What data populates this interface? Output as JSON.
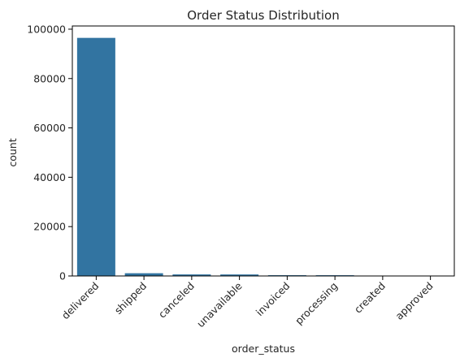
{
  "chart_data": {
    "type": "bar",
    "title": "Order Status Distribution",
    "xlabel": "order_status",
    "ylabel": "count",
    "categories": [
      "delivered",
      "shipped",
      "canceled",
      "unavailable",
      "invoiced",
      "processing",
      "created",
      "approved"
    ],
    "values": [
      96478,
      1107,
      625,
      609,
      314,
      301,
      5,
      2
    ],
    "ylim": [
      0,
      101300
    ],
    "yticks": [
      0,
      20000,
      40000,
      60000,
      80000,
      100000
    ],
    "ytick_labels": [
      "0",
      "20000",
      "40000",
      "60000",
      "80000",
      "100000"
    ],
    "x_tick_rotation": 45,
    "grid": false,
    "legend": "none",
    "colors": {
      "bar": "#3274a1",
      "axis": "#000000",
      "text": "#262626"
    }
  }
}
